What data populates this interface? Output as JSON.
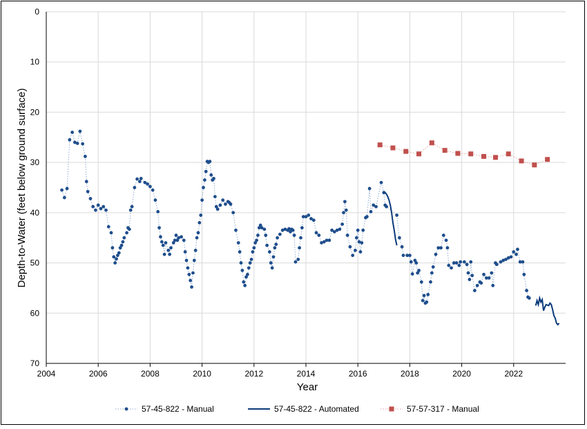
{
  "chart_data": {
    "type": "scatter",
    "title": "",
    "xlabel": "Year",
    "ylabel": "Depth-to-Water (feet below ground surface)",
    "xlim": [
      2004,
      2024
    ],
    "ylim": [
      0,
      70
    ],
    "y_inverted": true,
    "x_ticks": [
      2004,
      2006,
      2008,
      2010,
      2012,
      2014,
      2016,
      2018,
      2020,
      2022
    ],
    "x_tick_labels": [
      "2004",
      "2006",
      "2008",
      "2010",
      "2012",
      "2014",
      "2016",
      "2018",
      "2020",
      "2022"
    ],
    "y_ticks": [
      0,
      10,
      20,
      30,
      40,
      50,
      60,
      70
    ],
    "y_tick_labels": [
      "0",
      "10",
      "20",
      "30",
      "40",
      "50",
      "60",
      "70"
    ],
    "grid": "vertical-and-horizontal",
    "legend_position": "bottom",
    "series": [
      {
        "name": "57-45-822 - Manual",
        "color": "#1f4e8c",
        "marker": "circle",
        "line": "dotted",
        "points": [
          [
            2004.6,
            35.5
          ],
          [
            2004.7,
            37.0
          ],
          [
            2004.8,
            35.2
          ],
          [
            2004.9,
            25.5
          ],
          [
            2005.0,
            24.0
          ],
          [
            2005.1,
            26.0
          ],
          [
            2005.2,
            26.2
          ],
          [
            2005.3,
            23.8
          ],
          [
            2005.4,
            26.3
          ],
          [
            2005.5,
            28.8
          ],
          [
            2005.55,
            33.8
          ],
          [
            2005.6,
            35.8
          ],
          [
            2005.7,
            37.2
          ],
          [
            2005.8,
            38.8
          ],
          [
            2005.9,
            39.5
          ],
          [
            2006.0,
            38.5
          ],
          [
            2006.1,
            39.2
          ],
          [
            2006.2,
            38.8
          ],
          [
            2006.3,
            39.5
          ],
          [
            2006.4,
            42.8
          ],
          [
            2006.5,
            44.0
          ],
          [
            2006.55,
            47.0
          ],
          [
            2006.6,
            48.8
          ],
          [
            2006.65,
            50.0
          ],
          [
            2006.7,
            49.2
          ],
          [
            2006.75,
            48.5
          ],
          [
            2006.8,
            48.0
          ],
          [
            2006.85,
            47.0
          ],
          [
            2006.9,
            46.5
          ],
          [
            2006.95,
            45.8
          ],
          [
            2007.0,
            45.0
          ],
          [
            2007.1,
            44.0
          ],
          [
            2007.15,
            43.0
          ],
          [
            2007.2,
            43.3
          ],
          [
            2007.25,
            39.5
          ],
          [
            2007.3,
            38.8
          ],
          [
            2007.4,
            35.0
          ],
          [
            2007.5,
            33.3
          ],
          [
            2007.6,
            33.8
          ],
          [
            2007.65,
            33.2
          ],
          [
            2007.8,
            34.0
          ],
          [
            2007.9,
            34.3
          ],
          [
            2008.0,
            34.8
          ],
          [
            2008.1,
            35.5
          ],
          [
            2008.2,
            37.5
          ],
          [
            2008.3,
            39.8
          ],
          [
            2008.35,
            43.0
          ],
          [
            2008.4,
            44.8
          ],
          [
            2008.45,
            45.8
          ],
          [
            2008.5,
            46.5
          ],
          [
            2008.55,
            48.3
          ],
          [
            2008.6,
            46.0
          ],
          [
            2008.7,
            47.5
          ],
          [
            2008.75,
            48.3
          ],
          [
            2008.8,
            47.0
          ],
          [
            2008.9,
            46.0
          ],
          [
            2008.95,
            45.5
          ],
          [
            2009.0,
            44.5
          ],
          [
            2009.05,
            45.5
          ],
          [
            2009.1,
            45.0
          ],
          [
            2009.2,
            44.8
          ],
          [
            2009.3,
            45.5
          ],
          [
            2009.35,
            47.8
          ],
          [
            2009.4,
            49.5
          ],
          [
            2009.45,
            51.0
          ],
          [
            2009.5,
            52.3
          ],
          [
            2009.55,
            53.5
          ],
          [
            2009.6,
            54.8
          ],
          [
            2009.65,
            52.0
          ],
          [
            2009.7,
            49.5
          ],
          [
            2009.75,
            47.5
          ],
          [
            2009.8,
            45.0
          ],
          [
            2009.85,
            44.0
          ],
          [
            2009.9,
            42.0
          ],
          [
            2009.95,
            40.5
          ],
          [
            2010.0,
            37.5
          ],
          [
            2010.05,
            35.0
          ],
          [
            2010.1,
            33.5
          ],
          [
            2010.15,
            31.8
          ],
          [
            2010.2,
            29.8
          ],
          [
            2010.25,
            30.0
          ],
          [
            2010.3,
            29.8
          ],
          [
            2010.35,
            32.5
          ],
          [
            2010.4,
            33.5
          ],
          [
            2010.45,
            33.2
          ],
          [
            2010.5,
            36.8
          ],
          [
            2010.55,
            38.8
          ],
          [
            2010.6,
            39.3
          ],
          [
            2010.7,
            38.5
          ],
          [
            2010.8,
            37.5
          ],
          [
            2010.9,
            38.3
          ],
          [
            2011.0,
            37.8
          ],
          [
            2011.05,
            38.0
          ],
          [
            2011.1,
            38.3
          ],
          [
            2011.2,
            40.0
          ],
          [
            2011.3,
            43.5
          ],
          [
            2011.4,
            46.0
          ],
          [
            2011.45,
            47.8
          ],
          [
            2011.5,
            50.0
          ],
          [
            2011.55,
            51.5
          ],
          [
            2011.6,
            53.8
          ],
          [
            2011.65,
            54.5
          ],
          [
            2011.7,
            52.8
          ],
          [
            2011.75,
            52.3
          ],
          [
            2011.8,
            51.0
          ],
          [
            2011.85,
            50.0
          ],
          [
            2011.9,
            49.3
          ],
          [
            2011.95,
            47.8
          ],
          [
            2012.0,
            47.0
          ],
          [
            2012.05,
            46.0
          ],
          [
            2012.1,
            45.5
          ],
          [
            2012.15,
            44.5
          ],
          [
            2012.2,
            43.0
          ],
          [
            2012.25,
            42.5
          ],
          [
            2012.3,
            43.0
          ],
          [
            2012.4,
            43.3
          ],
          [
            2012.45,
            44.5
          ],
          [
            2012.5,
            46.5
          ],
          [
            2012.6,
            47.8
          ],
          [
            2012.65,
            50.0
          ],
          [
            2012.7,
            51.0
          ],
          [
            2012.75,
            48.8
          ],
          [
            2012.8,
            47.0
          ],
          [
            2012.85,
            46.3
          ],
          [
            2012.9,
            45.0
          ],
          [
            2013.0,
            44.3
          ],
          [
            2013.1,
            43.5
          ],
          [
            2013.2,
            43.3
          ],
          [
            2013.3,
            43.5
          ],
          [
            2013.35,
            43.2
          ],
          [
            2013.4,
            43.8
          ],
          [
            2013.45,
            43.3
          ],
          [
            2013.5,
            43.5
          ],
          [
            2013.55,
            44.5
          ],
          [
            2013.6,
            49.8
          ],
          [
            2013.7,
            49.3
          ],
          [
            2013.75,
            47.0
          ],
          [
            2013.8,
            45.0
          ],
          [
            2013.85,
            43.0
          ],
          [
            2013.9,
            40.8
          ],
          [
            2014.0,
            40.8
          ],
          [
            2014.1,
            40.5
          ],
          [
            2014.2,
            41.2
          ],
          [
            2014.3,
            41.5
          ],
          [
            2014.4,
            44.0
          ],
          [
            2014.5,
            44.5
          ],
          [
            2014.6,
            46.0
          ],
          [
            2014.7,
            45.8
          ],
          [
            2014.8,
            45.5
          ],
          [
            2014.9,
            45.5
          ],
          [
            2015.0,
            43.5
          ],
          [
            2015.1,
            43.8
          ],
          [
            2015.2,
            43.5
          ],
          [
            2015.3,
            43.3
          ],
          [
            2015.4,
            42.3
          ],
          [
            2015.45,
            40.0
          ],
          [
            2015.5,
            37.8
          ],
          [
            2015.55,
            39.5
          ],
          [
            2015.6,
            44.5
          ],
          [
            2015.7,
            46.8
          ],
          [
            2015.8,
            48.5
          ],
          [
            2015.9,
            47.5
          ],
          [
            2015.95,
            45.0
          ],
          [
            2016.0,
            43.5
          ],
          [
            2016.05,
            45.8
          ],
          [
            2016.1,
            47.8
          ],
          [
            2016.15,
            46.0
          ],
          [
            2016.2,
            43.5
          ],
          [
            2016.3,
            41.0
          ],
          [
            2016.35,
            40.8
          ],
          [
            2016.45,
            35.2
          ],
          [
            2016.5,
            39.8
          ],
          [
            2016.6,
            38.5
          ],
          [
            2016.7,
            38.8
          ],
          [
            2016.9,
            34.0
          ],
          [
            2017.0,
            36.0
          ],
          [
            2017.05,
            38.5
          ],
          [
            2017.1,
            38.8
          ],
          [
            2017.5,
            40.5
          ],
          [
            2017.6,
            45.0
          ],
          [
            2017.7,
            46.8
          ],
          [
            2017.75,
            48.5
          ],
          [
            2017.9,
            48.5
          ],
          [
            2018.0,
            48.5
          ],
          [
            2018.05,
            49.8
          ],
          [
            2018.1,
            52.2
          ],
          [
            2018.2,
            49.5
          ],
          [
            2018.25,
            50.0
          ],
          [
            2018.3,
            52.0
          ],
          [
            2018.35,
            51.5
          ],
          [
            2018.45,
            53.8
          ],
          [
            2018.5,
            57.5
          ],
          [
            2018.55,
            56.5
          ],
          [
            2018.6,
            58.0
          ],
          [
            2018.65,
            57.8
          ],
          [
            2018.7,
            56.3
          ],
          [
            2018.8,
            53.8
          ],
          [
            2018.85,
            52.0
          ],
          [
            2018.9,
            50.8
          ],
          [
            2019.0,
            48.3
          ],
          [
            2019.1,
            47.0
          ],
          [
            2019.2,
            47.0
          ],
          [
            2019.3,
            44.5
          ],
          [
            2019.4,
            45.5
          ],
          [
            2019.45,
            47.0
          ],
          [
            2019.5,
            50.5
          ],
          [
            2019.6,
            51.0
          ],
          [
            2019.7,
            50.0
          ],
          [
            2019.8,
            50.0
          ],
          [
            2019.9,
            50.5
          ],
          [
            2019.95,
            49.8
          ],
          [
            2020.1,
            49.8
          ],
          [
            2020.2,
            50.3
          ],
          [
            2020.25,
            52.0
          ],
          [
            2020.3,
            53.3
          ],
          [
            2020.35,
            49.8
          ],
          [
            2020.4,
            52.5
          ],
          [
            2020.5,
            55.5
          ],
          [
            2020.6,
            54.5
          ],
          [
            2020.7,
            53.8
          ],
          [
            2020.75,
            54.0
          ],
          [
            2020.85,
            52.3
          ],
          [
            2020.95,
            53.0
          ],
          [
            2021.05,
            53.0
          ],
          [
            2021.15,
            52.0
          ],
          [
            2021.2,
            54.5
          ],
          [
            2021.3,
            50.0
          ],
          [
            2021.35,
            50.3
          ],
          [
            2021.5,
            49.8
          ],
          [
            2021.6,
            49.5
          ],
          [
            2021.7,
            49.3
          ],
          [
            2021.8,
            49.0
          ],
          [
            2021.9,
            48.8
          ],
          [
            2022.0,
            47.8
          ],
          [
            2022.1,
            48.3
          ],
          [
            2022.15,
            47.3
          ],
          [
            2022.25,
            49.8
          ],
          [
            2022.35,
            49.8
          ],
          [
            2022.4,
            52.3
          ],
          [
            2022.5,
            55.5
          ],
          [
            2022.55,
            56.8
          ],
          [
            2022.6,
            57.0
          ]
        ]
      },
      {
        "name": "57-45-822 - Automated",
        "color": "#0b3a7a",
        "marker": "none",
        "line": "solid",
        "points": [
          [
            2017.0,
            35.8
          ],
          [
            2017.05,
            36.0
          ],
          [
            2017.1,
            36.3
          ],
          [
            2017.15,
            36.8
          ],
          [
            2017.2,
            37.5
          ],
          [
            2017.25,
            38.5
          ],
          [
            2017.3,
            40.0
          ],
          [
            2017.35,
            42.0
          ],
          [
            2017.4,
            43.5
          ],
          [
            2017.45,
            45.3
          ],
          [
            2017.5,
            46.5
          ],
          [
            2022.85,
            58.5
          ],
          [
            2022.9,
            57.5
          ],
          [
            2022.95,
            58.3
          ],
          [
            2023.0,
            57.0
          ],
          [
            2023.05,
            57.8
          ],
          [
            2023.1,
            57.3
          ],
          [
            2023.15,
            59.5
          ],
          [
            2023.2,
            58.8
          ],
          [
            2023.25,
            58.3
          ],
          [
            2023.35,
            58.5
          ],
          [
            2023.4,
            58.0
          ],
          [
            2023.45,
            58.3
          ],
          [
            2023.5,
            59.3
          ],
          [
            2023.55,
            60.5
          ],
          [
            2023.6,
            61.0
          ],
          [
            2023.65,
            62.0
          ],
          [
            2023.7,
            62.3
          ],
          [
            2023.75,
            62.0
          ]
        ]
      },
      {
        "name": "57-57-317 - Manual",
        "color": "#c0504d",
        "marker": "square",
        "line": "dotted",
        "points": [
          [
            2016.85,
            26.5
          ],
          [
            2017.35,
            27.1
          ],
          [
            2017.85,
            27.8
          ],
          [
            2018.35,
            28.3
          ],
          [
            2018.85,
            26.1
          ],
          [
            2019.35,
            27.6
          ],
          [
            2019.85,
            28.2
          ],
          [
            2020.35,
            28.3
          ],
          [
            2020.85,
            28.8
          ],
          [
            2021.3,
            29.0
          ],
          [
            2021.8,
            28.3
          ],
          [
            2022.3,
            29.7
          ],
          [
            2022.8,
            30.5
          ],
          [
            2023.3,
            29.4
          ]
        ]
      }
    ]
  }
}
